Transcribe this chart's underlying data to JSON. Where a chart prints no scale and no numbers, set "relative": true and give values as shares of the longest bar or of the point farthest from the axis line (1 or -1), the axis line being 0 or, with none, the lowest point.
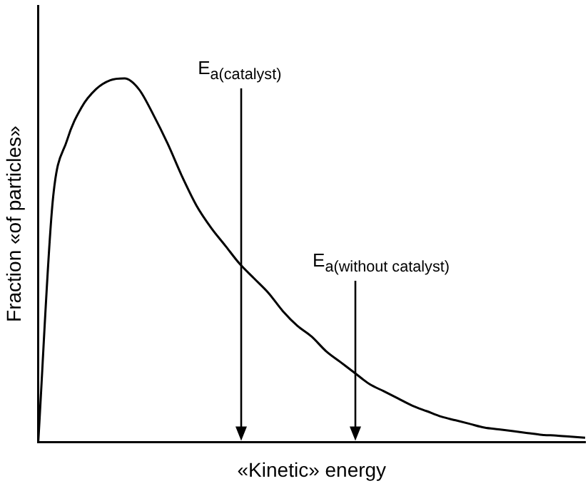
{
  "chart_data": {
    "type": "line",
    "relative": true,
    "xlabel": "«Kinetic» energy",
    "ylabel": "Fraction «of particles»",
    "categories": [
      null,
      null,
      null,
      null,
      null,
      null,
      null,
      null,
      null,
      null,
      null,
      null,
      null,
      null,
      null,
      null,
      null,
      null,
      null,
      null,
      null,
      null,
      null,
      null,
      null,
      null,
      null,
      null,
      null,
      null,
      null,
      null,
      null,
      null,
      null,
      null,
      null,
      null,
      null
    ],
    "series": [
      {
        "color": "#000000",
        "values": [
          0,
          0.66,
          0.83,
          0.92,
          0.97,
          0.995,
          1,
          0.97,
          0.9,
          0.82,
          0.73,
          0.65,
          0.59,
          0.54,
          0.49,
          0.45,
          0.41,
          0.36,
          0.32,
          0.29,
          0.25,
          0.22,
          0.19,
          0.16,
          0.14,
          0.12,
          0.1,
          0.085,
          0.07,
          0.06,
          0.05,
          0.04,
          0.035,
          0.03,
          0.025,
          0.02,
          0.018,
          0.015,
          0.012
        ]
      }
    ],
    "marker": "none",
    "line_style": "solid",
    "grid": false,
    "legend": false,
    "tick_labels": false,
    "annotations": [
      "E$_{a(catalyst)}$",
      "E$_{a(without catalyst)}$"
    ]
  }
}
